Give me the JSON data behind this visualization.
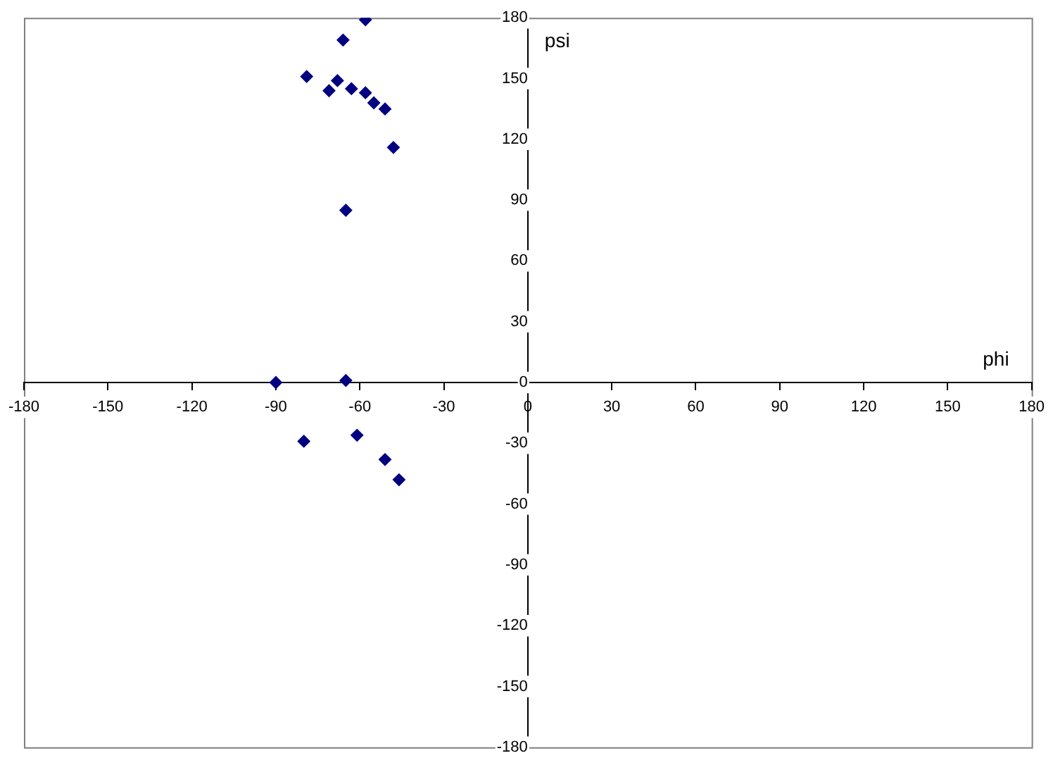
{
  "chart_data": {
    "type": "scatter",
    "xlabel": "phi",
    "ylabel": "psi",
    "xlim": [
      -180,
      180
    ],
    "ylim": [
      -180,
      180
    ],
    "xticks": [
      -180,
      -150,
      -120,
      -90,
      -60,
      -30,
      0,
      30,
      60,
      90,
      120,
      150,
      180
    ],
    "yticks": [
      -180,
      -150,
      -120,
      -90,
      -60,
      -30,
      0,
      30,
      60,
      90,
      120,
      150,
      180
    ],
    "grid": false,
    "legend": false,
    "marker": "diamond",
    "series": [
      {
        "color": "#000080",
        "x": [
          -58,
          -66,
          -79,
          -68,
          -71,
          -63,
          -58,
          -55,
          -51,
          -48,
          -65,
          -90,
          -65,
          -80,
          -61,
          -51,
          -46
        ],
        "values": [
          179,
          169,
          151,
          149,
          144,
          145,
          143,
          138,
          135,
          116,
          85,
          0,
          1,
          -29,
          -26,
          -38,
          -48
        ]
      }
    ]
  }
}
